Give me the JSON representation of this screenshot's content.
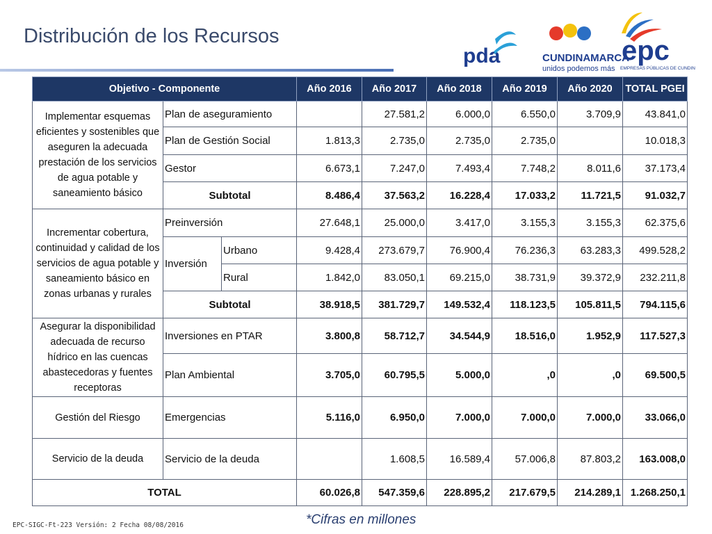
{
  "header": {
    "title": "Distribución de los Recursos",
    "logos": [
      "pda",
      "CUNDINAMARCA",
      "unidos podemos más",
      "epc",
      "EMPRESAS PÚBLICAS DE CUNDINAMARCA S.A.E.S.P."
    ]
  },
  "table": {
    "header": [
      "Objetivo - Componente",
      "Año 2016",
      "Año 2017",
      "Año 2018",
      "Año 2019",
      "Año 2020",
      "TOTAL PGEI"
    ],
    "groups": [
      {
        "objective": "Implementar esquemas eficientes y sostenibles que aseguren la adecuada prestación de los servicios de agua potable y saneamiento básico",
        "rows": [
          {
            "component": "Plan de aseguramiento",
            "values": [
              null,
              "27.581,2",
              "6.000,0",
              "6.550,0",
              "3.709,9",
              "43.841,0"
            ]
          },
          {
            "component": "Plan de Gestión Social",
            "values": [
              "1.813,3",
              "2.735,0",
              "2.735,0",
              "2.735,0",
              null,
              "10.018,3"
            ]
          },
          {
            "component": "Gestor",
            "values": [
              "6.673,1",
              "7.247,0",
              "7.493,4",
              "7.748,2",
              "8.011,6",
              "37.173,4"
            ]
          }
        ],
        "subtotal": {
          "label": "Subtotal",
          "values": [
            "8.486,4",
            "37.563,2",
            "16.228,4",
            "17.033,2",
            "11.721,5",
            "91.032,7"
          ]
        }
      },
      {
        "objective": "Incrementar cobertura, continuidad y calidad de los servicios de agua potable y saneamiento básico en zonas urbanas y rurales",
        "rows": [
          {
            "component": "Preinversión",
            "values": [
              "27.648,1",
              "25.000,0",
              "3.417,0",
              "3.155,3",
              "3.155,3",
              "62.375,6"
            ]
          },
          {
            "component": "Inversión",
            "subrows": [
              {
                "name": "Urbano",
                "values": [
                  "9.428,4",
                  "273.679,7",
                  "76.900,4",
                  "76.236,3",
                  "63.283,3",
                  "499.528,2"
                ]
              },
              {
                "name": "Rural",
                "values": [
                  "1.842,0",
                  "83.050,1",
                  "69.215,0",
                  "38.731,9",
                  "39.372,9",
                  "232.211,8"
                ]
              }
            ]
          }
        ],
        "subtotal": {
          "label": "Subtotal",
          "values": [
            "38.918,5",
            "381.729,7",
            "149.532,4",
            "118.123,5",
            "105.811,5",
            "794.115,6"
          ]
        }
      },
      {
        "objective": "Asegurar  la disponibilidad adecuada de recurso hídrico en las cuencas abastecedoras y fuentes receptoras",
        "rows": [
          {
            "component": "Inversiones en PTAR",
            "values": [
              "3.800,8",
              "58.712,7",
              "34.544,9",
              "18.516,0",
              "1.952,9",
              "117.527,3"
            ]
          },
          {
            "component": "Plan Ambiental",
            "values": [
              "3.705,0",
              "60.795,5",
              "5.000,0",
              ",0",
              ",0",
              "69.500,5"
            ]
          }
        ]
      },
      {
        "objective": "Gestión del Riesgo",
        "rows": [
          {
            "component": "Emergencias",
            "values": [
              "5.116,0",
              "6.950,0",
              "7.000,0",
              "7.000,0",
              "7.000,0",
              "33.066,0"
            ]
          }
        ]
      },
      {
        "objective": "Servicio de la deuda",
        "rows": [
          {
            "component": "Servicio de la deuda",
            "values": [
              null,
              "1.608,5",
              "16.589,4",
              "57.006,8",
              "87.803,2",
              "163.008,0"
            ]
          }
        ]
      }
    ],
    "total": {
      "label": "TOTAL",
      "values": [
        "60.026,8",
        "547.359,6",
        "228.895,2",
        "217.679,5",
        "214.289,1",
        "1.268.250,1"
      ]
    }
  },
  "footer": {
    "note": "*Cifras en millones",
    "code": "EPC-SIGC-Ft-223 Versión: 2 Fecha 08/08/2016"
  }
}
